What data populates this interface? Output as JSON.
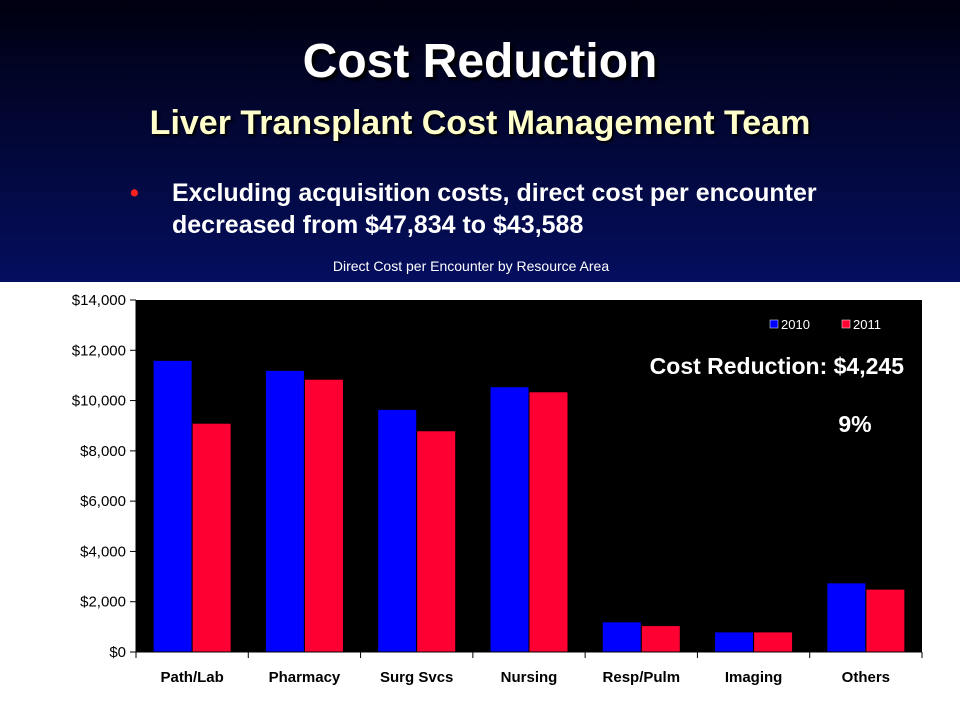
{
  "slide": {
    "title": "Cost Reduction",
    "subtitle": "Liver Transplant Cost Management Team",
    "bullet": "Excluding acquisition costs, direct cost per encounter decreased from $47,834 to $43,588"
  },
  "colors": {
    "background": "#0a1a8a",
    "series_2010": "#0000ff",
    "series_2011": "#ff0033",
    "bullet_marker": "#ff2020",
    "subtitle": "#ffffcc"
  },
  "chart_data": {
    "type": "bar",
    "title": "Direct Cost per Encounter by Resource Area",
    "categories": [
      "Path/Lab",
      "Pharmacy",
      "Surg Svcs",
      "Nursing",
      "Resp/Pulm",
      "Imaging",
      "Others"
    ],
    "series": [
      {
        "name": "2010",
        "values": [
          11600,
          11200,
          9650,
          10550,
          1200,
          800,
          2750
        ],
        "color": "#0000ff"
      },
      {
        "name": "2011",
        "values": [
          9100,
          10850,
          8800,
          10350,
          1050,
          800,
          2500
        ],
        "color": "#ff0033"
      }
    ],
    "ylim": [
      0,
      14000
    ],
    "yticks": [
      0,
      2000,
      4000,
      6000,
      8000,
      10000,
      12000,
      14000
    ],
    "ytick_labels": [
      "$0",
      "$2,000",
      "$4,000",
      "$6,000",
      "$8,000",
      "$10,000",
      "$12,000",
      "$14,000"
    ],
    "xlabel": "",
    "ylabel": "",
    "grid": false,
    "legend_position": "top-right",
    "annotations": [
      "Cost Reduction:  $4,245",
      "9%"
    ]
  }
}
